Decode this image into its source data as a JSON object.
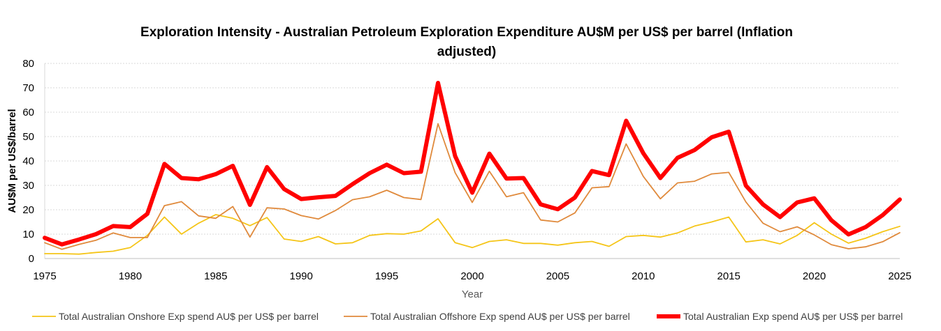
{
  "chart_data": {
    "type": "line",
    "title_line1": "Exploration Intensity - Australian Petroleum Exploration Expenditure AU$M per US$ per barrel (Inflation",
    "title_line2": "adjusted)",
    "xlabel": "Year",
    "ylabel": "AU$M per US$/barrel",
    "xlim": [
      1975,
      2025
    ],
    "ylim": [
      0,
      80
    ],
    "xticks": [
      1975,
      1980,
      1985,
      1990,
      1995,
      2000,
      2005,
      2010,
      2015,
      2020,
      2025
    ],
    "yticks": [
      0,
      10,
      20,
      30,
      40,
      50,
      60,
      70,
      80
    ],
    "grid": "horizontal",
    "legend_position": "bottom",
    "x": [
      1975,
      1976,
      1977,
      1978,
      1979,
      1980,
      1981,
      1982,
      1983,
      1984,
      1985,
      1986,
      1987,
      1988,
      1989,
      1990,
      1991,
      1992,
      1993,
      1994,
      1995,
      1996,
      1997,
      1998,
      1999,
      2000,
      2001,
      2002,
      2003,
      2004,
      2005,
      2006,
      2007,
      2008,
      2009,
      2010,
      2011,
      2012,
      2013,
      2014,
      2015,
      2016,
      2017,
      2018,
      2019,
      2020,
      2021,
      2022,
      2023,
      2024,
      2025
    ],
    "series": [
      {
        "name": "Total Australian Onshore Exp spend AU$ per US$ per barrel",
        "color": "#f5c518",
        "values": [
          2,
          2,
          1.8,
          2.5,
          3,
          4.5,
          9.5,
          17,
          10,
          14.5,
          18,
          16.5,
          13.5,
          16.8,
          8,
          7,
          9,
          6,
          6.5,
          9.5,
          10.2,
          10,
          11.3,
          16.3,
          6.5,
          4.5,
          7,
          7.7,
          6.2,
          6.2,
          5.5,
          6.5,
          7,
          5,
          9,
          9.5,
          8.8,
          10.5,
          13.3,
          15,
          17,
          6.8,
          7.7,
          6,
          9.5,
          14.7,
          10,
          6.3,
          8.3,
          11,
          13.2
        ]
      },
      {
        "name": "Total Australian  Offshore Exp spend AU$ per US$ per barrel",
        "color": "#e08a3c",
        "values": [
          6.5,
          3.8,
          5.8,
          7.5,
          10.5,
          8.6,
          8.6,
          21.7,
          23.3,
          17.5,
          16.5,
          21.3,
          8.8,
          20.8,
          20.3,
          17.6,
          16.2,
          19.7,
          24.1,
          25.3,
          28,
          25,
          24.2,
          55.3,
          35.2,
          23,
          35.8,
          25.3,
          27,
          15.8,
          15,
          18.7,
          29,
          29.5,
          47,
          33.7,
          24.5,
          31,
          31.7,
          34.7,
          35.3,
          23.2,
          14.5,
          11,
          13,
          9.7,
          5.7,
          4,
          4.8,
          6.9,
          10.6
        ]
      },
      {
        "name": "Total Australian Exp spend AU$ per US$ per barrel",
        "color": "#ff0000",
        "values": [
          8.5,
          5.8,
          7.8,
          10,
          13.3,
          12.9,
          18.3,
          38.8,
          33,
          32.5,
          34.6,
          38,
          22,
          37.5,
          28.5,
          24.4,
          25.1,
          25.7,
          30.5,
          35,
          38.5,
          35,
          35.6,
          72,
          42,
          27,
          43,
          32.8,
          33,
          22.2,
          20.2,
          25,
          35.9,
          34.2,
          56.5,
          43.2,
          33,
          41.3,
          44.5,
          49.7,
          52,
          29.9,
          22.2,
          17,
          23,
          24.7,
          15.7,
          9.9,
          12.9,
          17.8,
          24.2
        ]
      }
    ]
  }
}
